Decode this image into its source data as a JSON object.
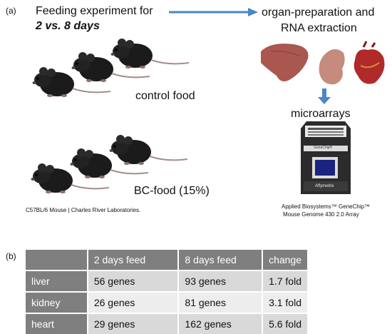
{
  "panel_a": {
    "label": "(a)",
    "feeding_title": "Feeding experiment for",
    "feeding_duration": "2 vs. 8 days",
    "organ_prep_line1": "organ-preparation and",
    "organ_prep_line2": "RNA extraction",
    "control_label": "control food",
    "bc_label": "BC-food (15%)",
    "microarrays_label": "microarrays",
    "mouse_source": "C57BL/6 Mouse | Charles River Laboratories.",
    "chip_caption_line1": "Applied Biosystems™ GeneChip™",
    "chip_caption_line2": "Mouse Genome 430 2.0 Array",
    "chip_brand": "GeneChip®",
    "chip_maker": "Affymetrix"
  },
  "panel_b": {
    "label": "(b)",
    "headers": [
      "",
      "2 days feed",
      "8 days feed",
      "change"
    ],
    "rows": [
      [
        "liver",
        "56 genes",
        "93 genes",
        "1.7 fold"
      ],
      [
        "kidney",
        "26 genes",
        "81 genes",
        "3.1 fold"
      ],
      [
        "heart",
        "29 genes",
        "162 genes",
        "5.6 fold"
      ]
    ]
  },
  "colors": {
    "arrow": "#4a86c8",
    "table_header": "#7f7f7f",
    "table_cell": "#d9d9d9",
    "table_cell_alt": "#ededed",
    "chip_screen": "#1a237e"
  },
  "icons": [
    "mouse-icon",
    "liver-icon",
    "kidney-icon",
    "heart-icon",
    "microarray-chip-icon"
  ]
}
